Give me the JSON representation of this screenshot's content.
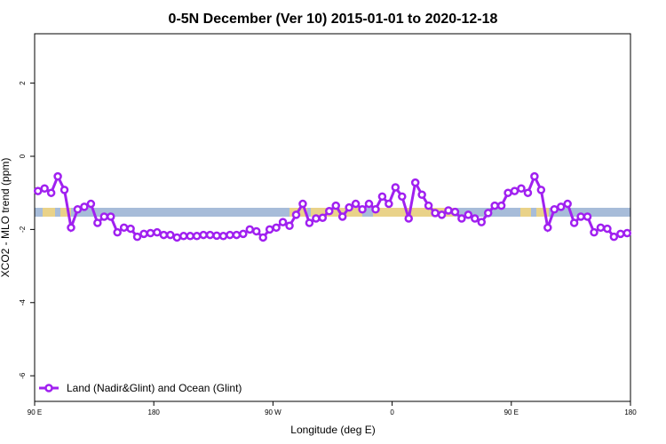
{
  "chart_data": {
    "type": "line",
    "title": "0-5N December (Ver 10)   2015-01-01 to 2020-12-18",
    "x_label": "Longitude (deg E)",
    "y_label": "XCO2 - MLO trend (ppm)",
    "xlim": [
      90,
      540
    ],
    "ylim": [
      -6.7,
      3.35
    ],
    "xticks": [
      {
        "value": 90,
        "label": "90 E"
      },
      180,
      {
        "value": 270,
        "label": "90 W"
      },
      {
        "value": 360,
        "label": "0"
      },
      {
        "value": 450,
        "label": "90 E"
      },
      {
        "value": 540,
        "label": "180"
      }
    ],
    "yticks": [
      -6,
      -4,
      -2,
      0,
      2
    ],
    "legend": "bottom-left",
    "x": [
      92.5,
      97.5,
      102.5,
      107.5,
      112.5,
      117.5,
      122.5,
      127.5,
      132.5,
      137.5,
      142.5,
      147.5,
      152.5,
      157.5,
      162.5,
      167.5,
      172.5,
      177.5,
      182.5,
      187.5,
      192.5,
      197.5,
      202.5,
      207.5,
      212.5,
      217.5,
      222.5,
      227.5,
      232.5,
      237.5,
      242.5,
      247.5,
      252.5,
      257.5,
      262.5,
      267.5,
      272.5,
      277.5,
      282.5,
      287.5,
      292.5,
      297.5,
      302.5,
      307.5,
      312.5,
      317.5,
      322.5,
      327.5,
      332.5,
      337.5,
      342.5,
      347.5,
      352.5,
      357.5,
      362.5,
      367.5,
      372.5,
      377.5,
      382.5,
      387.5,
      392.5,
      397.5,
      402.5,
      407.5,
      412.5,
      417.5,
      422.5,
      427.5,
      432.5,
      437.5,
      442.5,
      447.5,
      452.5,
      457.5,
      462.5,
      467.5,
      472.5,
      477.5,
      482.5,
      487.5,
      492.5,
      497.5,
      502.5,
      507.5,
      512.5,
      517.5,
      522.5,
      527.5,
      532.5,
      537.5
    ],
    "series": [
      {
        "name": "Land (Nadir&Glint) and Ocean (Glint)",
        "color": "#a020f0",
        "values": [
          -0.95,
          -0.88,
          -1.0,
          -0.55,
          -0.92,
          -1.95,
          -1.45,
          -1.38,
          -1.3,
          -1.82,
          -1.65,
          -1.65,
          -2.08,
          -1.95,
          -1.98,
          -2.2,
          -2.12,
          -2.1,
          -2.08,
          -2.15,
          -2.15,
          -2.22,
          -2.18,
          -2.18,
          -2.18,
          -2.15,
          -2.15,
          -2.17,
          -2.18,
          -2.15,
          -2.15,
          -2.12,
          -2.0,
          -2.05,
          -2.22,
          -2.0,
          -1.95,
          -1.8,
          -1.9,
          -1.6,
          -1.3,
          -1.82,
          -1.7,
          -1.68,
          -1.5,
          -1.35,
          -1.65,
          -1.4,
          -1.3,
          -1.45,
          -1.3,
          -1.45,
          -1.1,
          -1.3,
          -0.85,
          -1.1,
          -1.7,
          -0.72,
          -1.05,
          -1.35,
          -1.55,
          -1.6,
          -1.48,
          -1.52,
          -1.7,
          -1.6,
          -1.7,
          -1.8,
          -1.55,
          -1.35,
          -1.35,
          -1.0,
          -0.95,
          -0.88,
          -1.0,
          -0.55,
          -0.92,
          -1.95,
          -1.45,
          -1.38,
          -1.3,
          -1.82,
          -1.65,
          -1.65,
          -2.08,
          -1.95,
          -1.98,
          -2.2,
          -2.12,
          -2.1
        ]
      }
    ]
  }
}
